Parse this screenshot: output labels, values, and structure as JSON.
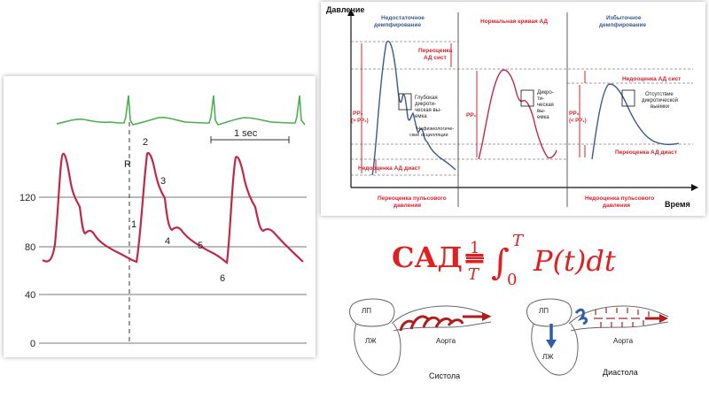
{
  "arterial": {
    "y_ticks": [
      "120",
      "80",
      "40",
      "0"
    ],
    "time_scale": "1 sec",
    "r_label": "R",
    "points": [
      "1",
      "2",
      "3",
      "4",
      "5",
      "6"
    ],
    "colors": {
      "ecg": "#4caf50",
      "pressure": "#c0284a",
      "grid": "#777777"
    }
  },
  "damping": {
    "y_axis_label": "Давление",
    "x_axis_label": "Время",
    "sections": {
      "under": "Недостаточное демпфирование",
      "normal": "Нормальная кривая АД",
      "over": "Избыточное демпфирование"
    },
    "labels": {
      "sys_overestimate": "Переоценка АД сист",
      "dia_underestimate_left": "Недооценка АД диаст",
      "deep_notch": "Глубокая дикроти-ческая вы-емка",
      "nonphysio": "Нефизиологиче-ские осцилляции",
      "pp2_left": "PP₂",
      "pp2_left_sub": "(> PP₁)",
      "pp1": "PP₁",
      "dicrotic": "Дикро-ти-ческая вы-емка",
      "sys_underestimate": "Недооценка АД сист",
      "no_notch": "Отсутствие дикротической выемки",
      "dia_overestimate": "Переоценка АД диаст",
      "pp2_right": "PP₂",
      "pp2_right_sub": "(< PP₁)",
      "pulse_overestimate": "Переоценка пульсового давления",
      "pulse_underestimate": "Недооценка пульсового давления"
    },
    "colors": {
      "curve": "#3b5a8c",
      "red": "#d8202a",
      "notch": "#c0284a"
    }
  },
  "formula": {
    "lhs": "САД=",
    "frac_num": "1",
    "frac_den": "T",
    "int_upper": "T",
    "int_lower": "0",
    "rhs": "P(t)dt",
    "color": "#e02020"
  },
  "flow": {
    "systole": {
      "lp": "ЛП",
      "lzh": "ЛЖ",
      "aorta": "Аорта",
      "caption": "Систола"
    },
    "diastole": {
      "lp": "ЛП",
      "lzh": "ЛЖ",
      "aorta": "Аорта",
      "caption": "Диастола"
    },
    "colors": {
      "arrow": "#b11d1d",
      "valve": "#2f5fa6"
    }
  }
}
